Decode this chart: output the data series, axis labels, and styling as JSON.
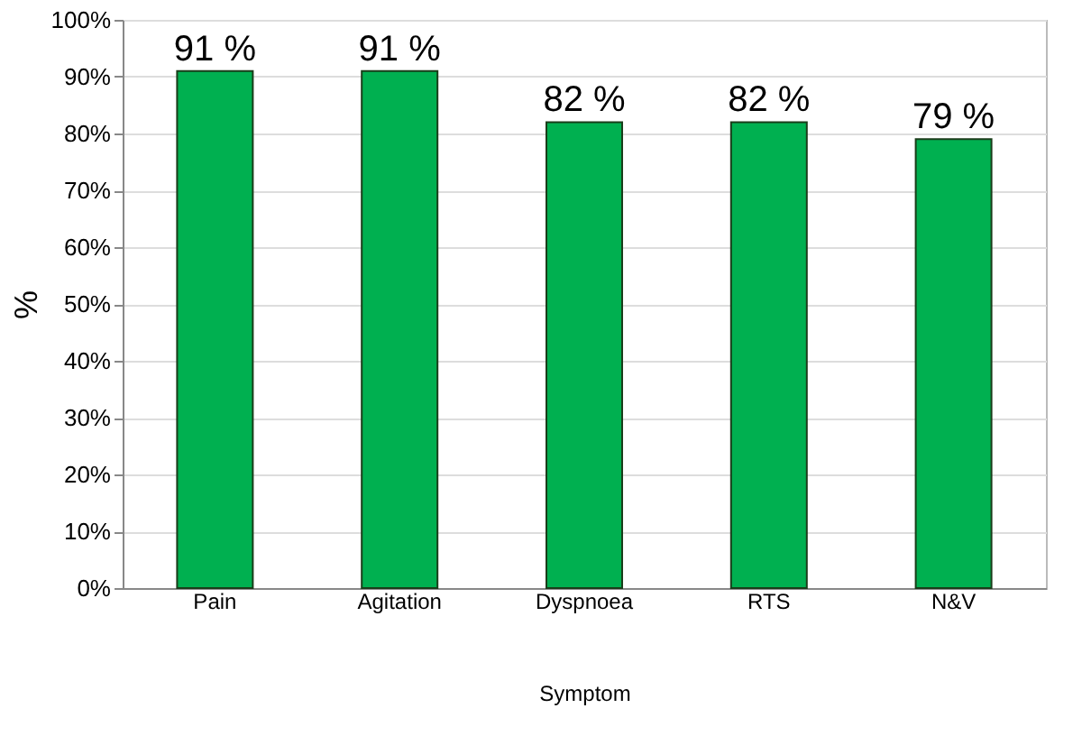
{
  "chart_data": {
    "type": "bar",
    "xlabel": "Symptom",
    "ylabel": "%",
    "categories": [
      "Pain",
      "Agitation",
      "Dyspnoea",
      "RTS",
      "N&V"
    ],
    "values": [
      91,
      91,
      82,
      82,
      79
    ],
    "value_labels": [
      "91 %",
      "91 %",
      "82 %",
      "82 %",
      "79 %"
    ],
    "color": "#00b050",
    "ylim": [
      0,
      100
    ],
    "yticks": [
      {
        "value": 0,
        "label": "0%"
      },
      {
        "value": 10,
        "label": "10%"
      },
      {
        "value": 20,
        "label": "20%"
      },
      {
        "value": 30,
        "label": "30%"
      },
      {
        "value": 40,
        "label": "40%"
      },
      {
        "value": 50,
        "label": "50%"
      },
      {
        "value": 60,
        "label": "60%"
      },
      {
        "value": 70,
        "label": "70%"
      },
      {
        "value": 80,
        "label": "80%"
      },
      {
        "value": 90,
        "label": "90%"
      },
      {
        "value": 100,
        "label": "100%"
      }
    ],
    "grid": "y"
  }
}
